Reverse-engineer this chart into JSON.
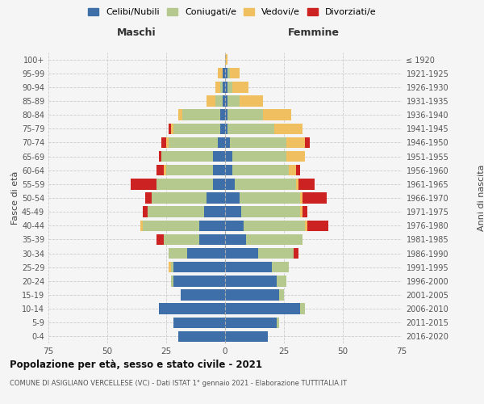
{
  "age_groups": [
    "0-4",
    "5-9",
    "10-14",
    "15-19",
    "20-24",
    "25-29",
    "30-34",
    "35-39",
    "40-44",
    "45-49",
    "50-54",
    "55-59",
    "60-64",
    "65-69",
    "70-74",
    "75-79",
    "80-84",
    "85-89",
    "90-94",
    "95-99",
    "100+"
  ],
  "birth_years": [
    "2016-2020",
    "2011-2015",
    "2006-2010",
    "2001-2005",
    "1996-2000",
    "1991-1995",
    "1986-1990",
    "1981-1985",
    "1976-1980",
    "1971-1975",
    "1966-1970",
    "1961-1965",
    "1956-1960",
    "1951-1955",
    "1946-1950",
    "1941-1945",
    "1936-1940",
    "1931-1935",
    "1926-1930",
    "1921-1925",
    "≤ 1920"
  ],
  "colors": {
    "celibe": "#3e6fa8",
    "coniugato": "#b5c98e",
    "vedovo": "#f0c060",
    "divorziato": "#cc2222"
  },
  "maschi": {
    "celibe": [
      20,
      22,
      28,
      19,
      22,
      22,
      16,
      11,
      11,
      9,
      8,
      5,
      5,
      5,
      3,
      2,
      2,
      1,
      1,
      1,
      0
    ],
    "coniugato": [
      0,
      0,
      0,
      0,
      1,
      1,
      8,
      15,
      24,
      24,
      23,
      24,
      20,
      22,
      21,
      20,
      16,
      3,
      1,
      0,
      0
    ],
    "vedovo": [
      0,
      0,
      0,
      0,
      0,
      1,
      0,
      0,
      1,
      0,
      0,
      0,
      1,
      0,
      1,
      1,
      2,
      4,
      2,
      2,
      0
    ],
    "divorziato": [
      0,
      0,
      0,
      0,
      0,
      0,
      0,
      3,
      0,
      2,
      3,
      11,
      3,
      1,
      2,
      1,
      0,
      0,
      0,
      0,
      0
    ]
  },
  "femmine": {
    "celibe": [
      18,
      22,
      32,
      23,
      22,
      20,
      14,
      9,
      8,
      7,
      6,
      4,
      3,
      3,
      2,
      1,
      1,
      1,
      1,
      1,
      0
    ],
    "coniugato": [
      0,
      1,
      2,
      2,
      4,
      7,
      15,
      24,
      26,
      25,
      26,
      26,
      24,
      23,
      24,
      20,
      15,
      5,
      2,
      1,
      0
    ],
    "vedovo": [
      0,
      0,
      0,
      0,
      0,
      0,
      0,
      0,
      1,
      1,
      1,
      1,
      3,
      8,
      8,
      12,
      12,
      10,
      7,
      4,
      1
    ],
    "divorziato": [
      0,
      0,
      0,
      0,
      0,
      0,
      2,
      0,
      9,
      2,
      10,
      7,
      2,
      0,
      2,
      0,
      0,
      0,
      0,
      0,
      0
    ]
  },
  "title": "Popolazione per età, sesso e stato civile - 2021",
  "subtitle": "COMUNE DI ASIGLIANO VERCELLESE (VC) - Dati ISTAT 1° gennaio 2021 - Elaborazione TUTTITALIA.IT",
  "xlabel_left": "Maschi",
  "xlabel_right": "Femmine",
  "ylabel_left": "Fasce di età",
  "ylabel_right": "Anni di nascita",
  "xlim": 75,
  "legend_labels": [
    "Celibi/Nubili",
    "Coniugati/e",
    "Vedovi/e",
    "Divorziati/e"
  ],
  "bg_color": "#f5f5f5",
  "grid_color": "#cccccc"
}
